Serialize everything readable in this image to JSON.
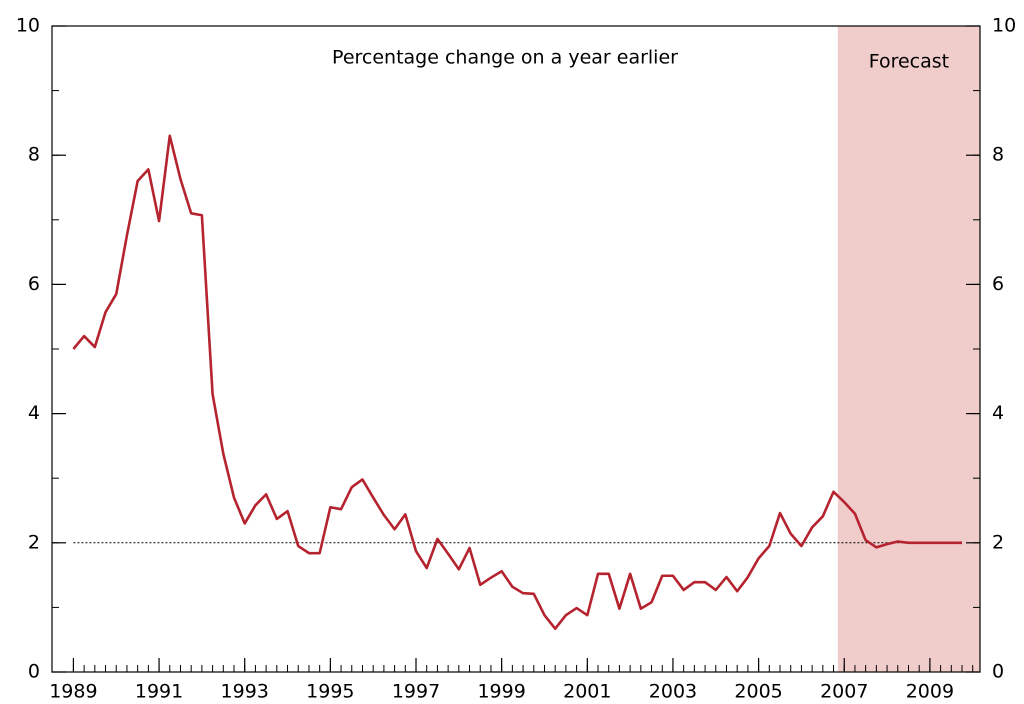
{
  "chart_data": {
    "type": "line",
    "subtitle": "Percentage change on a year earlier",
    "annotation": "Forecast",
    "forecast_start": 2006.85,
    "reference_line": 2,
    "x": [
      1989,
      1989.25,
      1989.5,
      1989.75,
      1990,
      1990.25,
      1990.5,
      1990.75,
      1991,
      1991.25,
      1991.5,
      1991.75,
      1992,
      1992.25,
      1992.5,
      1992.75,
      1993,
      1993.25,
      1993.5,
      1993.75,
      1994,
      1994.25,
      1994.5,
      1994.75,
      1995,
      1995.25,
      1995.5,
      1995.75,
      1996,
      1996.25,
      1996.5,
      1996.75,
      1997,
      1997.25,
      1997.5,
      1997.75,
      1998,
      1998.25,
      1998.5,
      1998.75,
      1999,
      1999.25,
      1999.5,
      1999.75,
      2000,
      2000.25,
      2000.5,
      2000.75,
      2001,
      2001.25,
      2001.5,
      2001.75,
      2002,
      2002.25,
      2002.5,
      2002.75,
      2003,
      2003.25,
      2003.5,
      2003.75,
      2004,
      2004.25,
      2004.5,
      2004.75,
      2005,
      2005.25,
      2005.5,
      2005.75,
      2006,
      2006.25,
      2006.5,
      2006.75,
      2007,
      2007.25,
      2007.5,
      2007.75,
      2008,
      2008.25,
      2008.5,
      2008.75,
      2009,
      2009.25,
      2009.5,
      2009.75
    ],
    "series": [
      {
        "color": "#b5232e",
        "values": [
          5.0,
          5.2,
          5.03,
          5.57,
          5.85,
          6.76,
          7.6,
          7.78,
          6.98,
          8.3,
          7.63,
          7.1,
          7.07,
          4.3,
          3.38,
          2.7,
          2.3,
          2.58,
          2.75,
          2.37,
          2.49,
          1.95,
          1.84,
          1.84,
          2.55,
          2.52,
          2.86,
          2.98,
          2.7,
          2.43,
          2.21,
          2.44,
          1.87,
          1.61,
          2.06,
          1.83,
          1.59,
          1.92,
          1.35,
          1.46,
          1.56,
          1.32,
          1.22,
          1.21,
          0.88,
          0.67,
          0.88,
          0.99,
          0.88,
          1.52,
          1.52,
          0.98,
          1.52,
          0.98,
          1.08,
          1.49,
          1.49,
          1.27,
          1.39,
          1.39,
          1.27,
          1.47,
          1.25,
          1.47,
          1.76,
          1.95,
          2.46,
          2.14,
          1.95,
          2.24,
          2.41,
          2.79,
          2.63,
          2.45,
          2.04,
          1.93,
          1.98,
          2.02,
          2.0,
          2.0,
          2.0,
          2.0,
          2.0,
          2.0
        ]
      }
    ],
    "xlim": [
      1988.5,
      2010.17
    ],
    "xticks": [
      1989,
      1991,
      1993,
      1995,
      1997,
      1999,
      2001,
      2003,
      2005,
      2007,
      2009
    ],
    "x_minor_tick_step": 0.25,
    "ylim": [
      0,
      10
    ],
    "yticks": [
      0,
      2,
      4,
      6,
      8,
      10
    ],
    "y2lim": [
      0,
      10
    ],
    "y2ticks": [
      0,
      2,
      4,
      6,
      8,
      10
    ],
    "y_minor_tick_step": 1,
    "forecast_color": "#f0cccb"
  }
}
